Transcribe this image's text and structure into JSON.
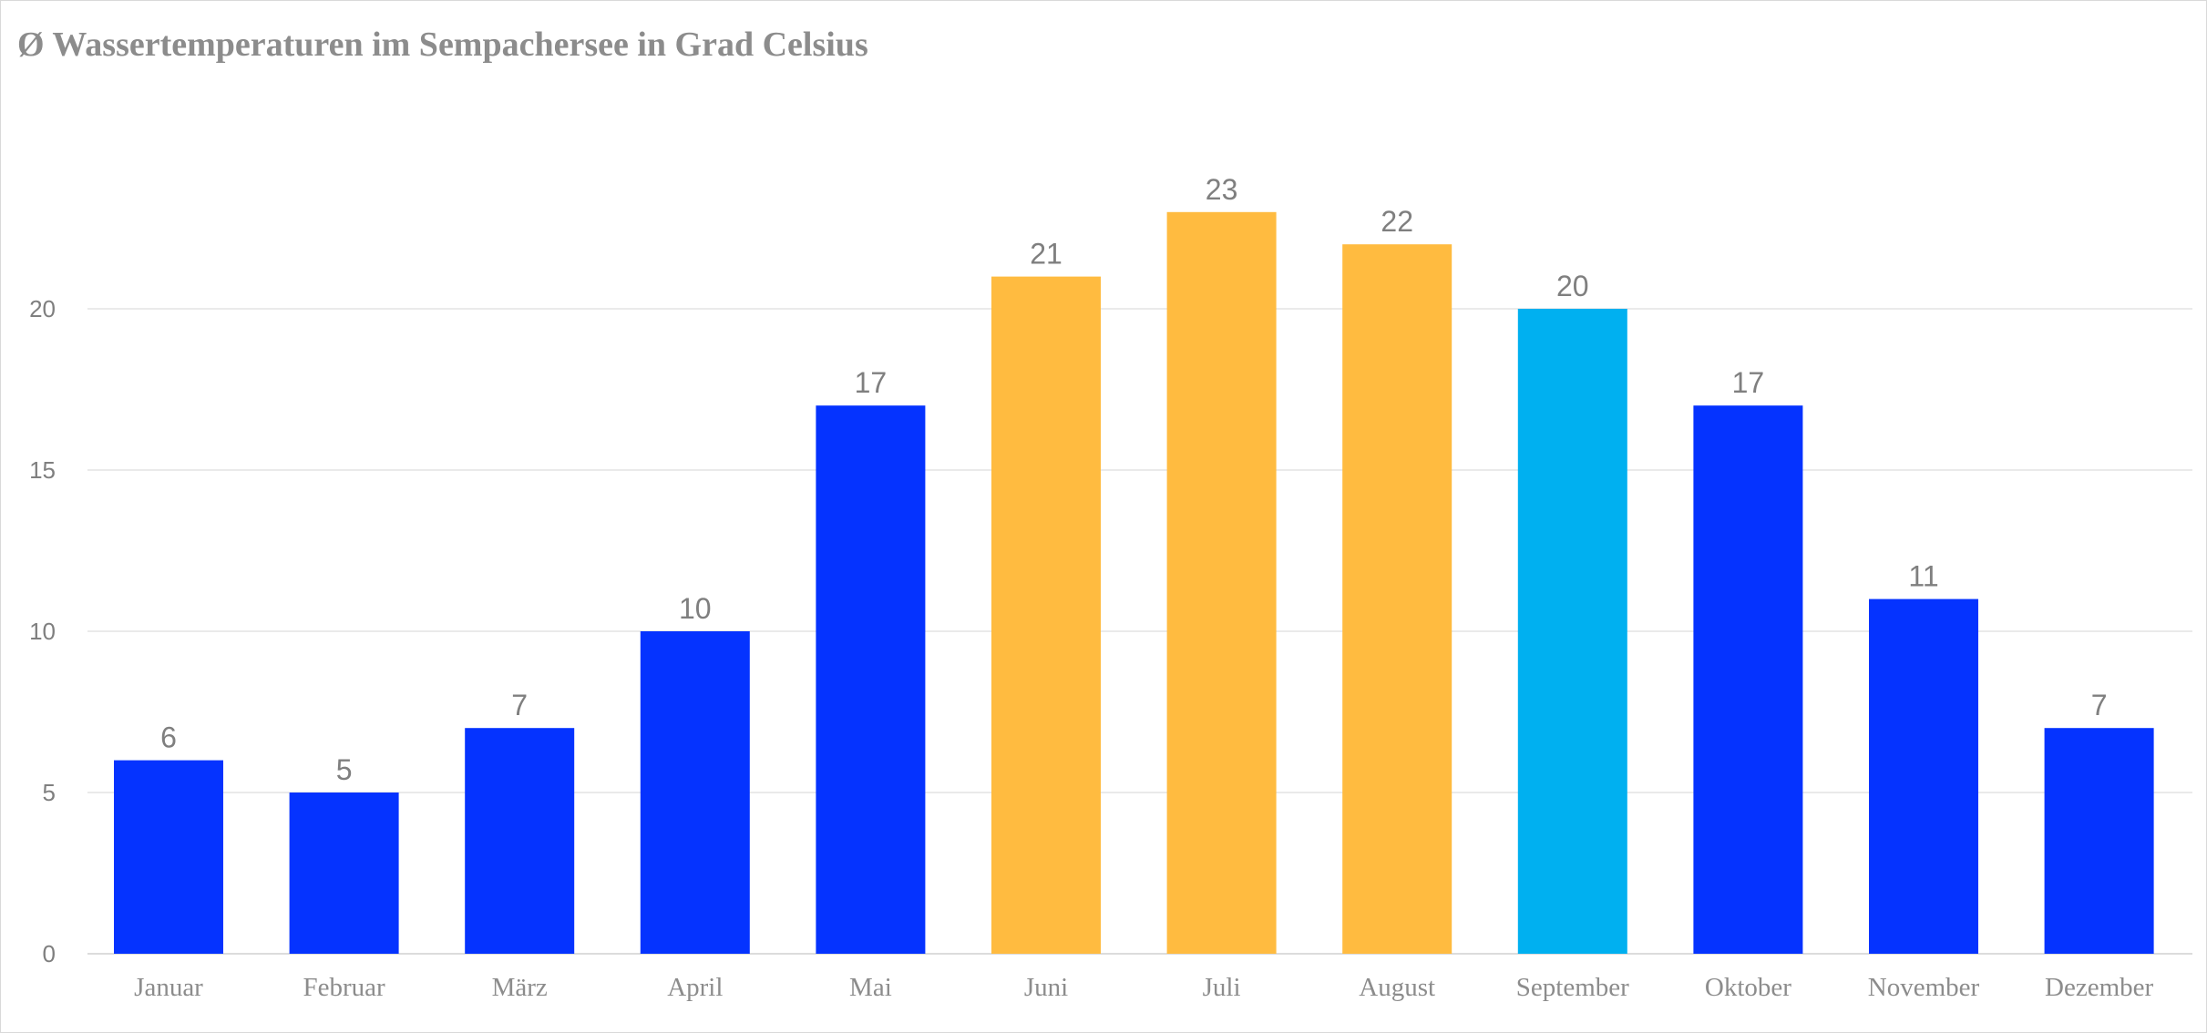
{
  "chart_data": {
    "type": "bar",
    "title": "Ø Wassertemperaturen im Sempachersee in Grad Celsius",
    "categories": [
      "Januar",
      "Februar",
      "März",
      "April",
      "Mai",
      "Juni",
      "Juli",
      "August",
      "September",
      "Oktober",
      "November",
      "Dezember"
    ],
    "values": [
      6,
      5,
      7,
      10,
      17,
      21,
      23,
      22,
      20,
      17,
      11,
      7
    ],
    "bar_colors": [
      "#0533ff",
      "#0533ff",
      "#0533ff",
      "#0533ff",
      "#0533ff",
      "#ffbb40",
      "#ffbb40",
      "#ffbb40",
      "#00b0f0",
      "#0533ff",
      "#0533ff",
      "#0533ff"
    ],
    "yticks": [
      0,
      5,
      10,
      15,
      20
    ],
    "ylim": [
      0,
      25
    ],
    "grid": true,
    "legend": "none",
    "data_labels": true
  }
}
